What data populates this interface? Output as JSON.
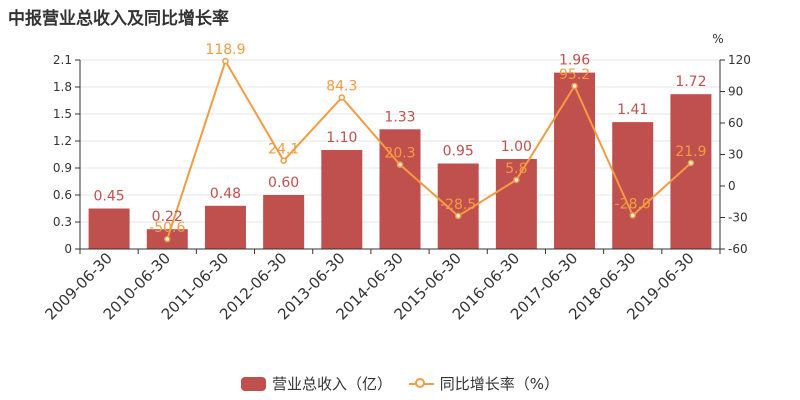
{
  "title": "中报营业总收入及同比增长率",
  "colors": {
    "bar": "#c0504d",
    "line": "#f49b42",
    "axis": "#333333",
    "grid": "#e6e6e6",
    "bar_label": "#c0504d",
    "line_label": "#f49b42"
  },
  "chart_data": {
    "type": "bar",
    "title": "中报营业总收入及同比增长率",
    "categories": [
      "2009-06-30",
      "2010-06-30",
      "2011-06-30",
      "2012-06-30",
      "2013-06-30",
      "2014-06-30",
      "2015-06-30",
      "2016-06-30",
      "2017-06-30",
      "2018-06-30",
      "2019-06-30"
    ],
    "series": [
      {
        "name": "营业总收入（亿）",
        "type": "bar",
        "axis": "left",
        "values": [
          0.45,
          0.22,
          0.48,
          0.6,
          1.1,
          1.33,
          0.95,
          1.0,
          1.96,
          1.41,
          1.72
        ],
        "labels": [
          "0.45",
          "0.22",
          "0.48",
          "0.60",
          "1.10",
          "1.33",
          "0.95",
          "1.00",
          "1.96",
          "1.41",
          "1.72"
        ]
      },
      {
        "name": "同比增长率（%）",
        "type": "line",
        "axis": "right",
        "values": [
          null,
          -50.6,
          118.9,
          24.1,
          84.3,
          20.3,
          -28.5,
          5.8,
          95.2,
          -28.0,
          21.9
        ],
        "labels": [
          "",
          "-50.6",
          "118.9",
          "24.1",
          "84.3",
          "20.3",
          "-28.5",
          "5.8",
          "95.2",
          "-28.0",
          "21.9"
        ]
      }
    ],
    "y_left": {
      "min": 0,
      "max": 2.1,
      "ticks": [
        "0",
        "0.3",
        "0.6",
        "0.9",
        "1.2",
        "1.5",
        "1.8",
        "2.1"
      ]
    },
    "y_right": {
      "min": -60,
      "max": 120,
      "unit": "%",
      "ticks": [
        "-60",
        "-30",
        "0",
        "30",
        "60",
        "90",
        "120"
      ]
    },
    "grid": true,
    "legend_position": "bottom"
  },
  "legend": {
    "bar_label": "营业总收入（亿）",
    "line_label": "同比增长率（%）"
  }
}
